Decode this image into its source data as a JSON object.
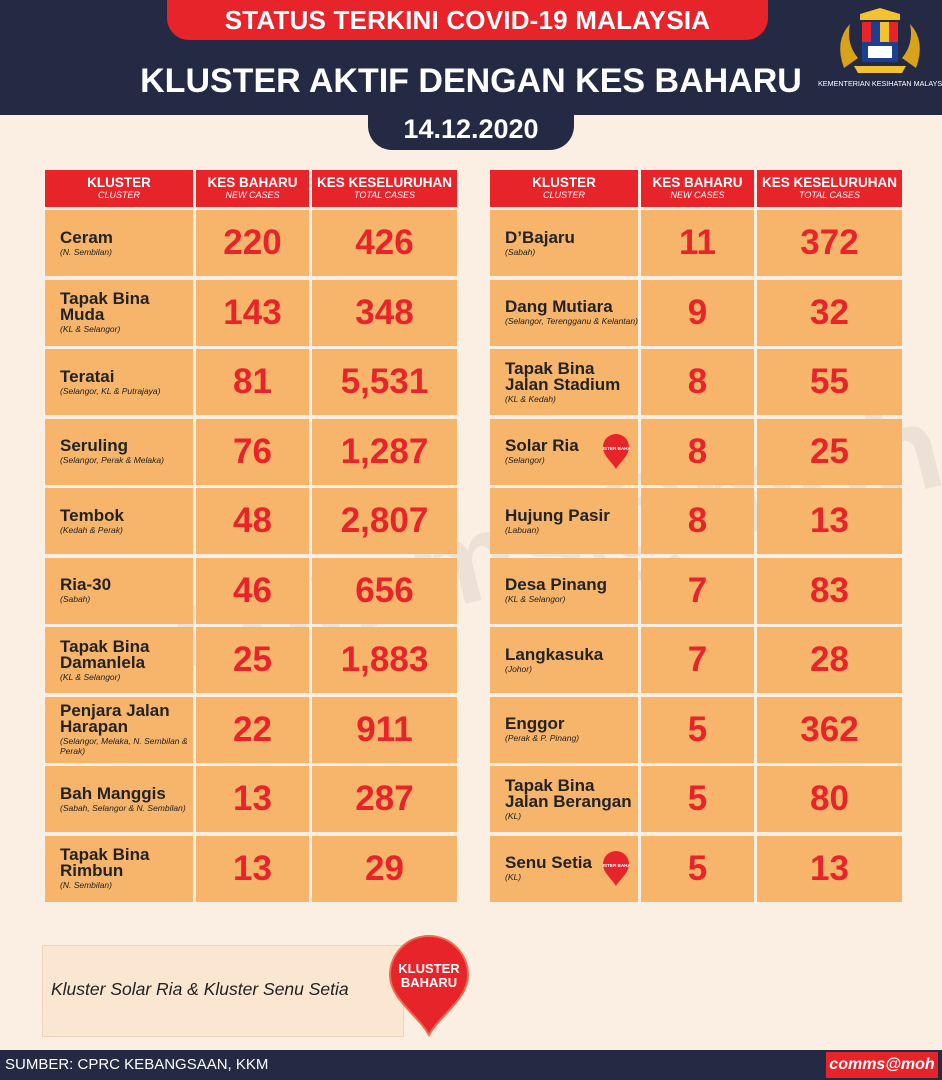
{
  "header": {
    "ribbon_title": "STATUS TERKINI COVID-19 MALAYSIA",
    "main_title": "KLUSTER AKTIF DENGAN KES BAHARU",
    "date": "14.12.2020",
    "logo_caption": "KEMENTERIAN KESIHATAN MALAYSIA"
  },
  "watermark": "comms@moh",
  "columns": {
    "cluster": "KLUSTER",
    "cluster_en": "CLUSTER",
    "new": "KES BAHARU",
    "new_en": "NEW CASES",
    "total": "KES KESELURUHAN",
    "total_en": "TOTAL CASES"
  },
  "left_rows": [
    {
      "name": "Ceram",
      "states": "(N. Sembilan)",
      "new": "220",
      "total": "426",
      "badge": false
    },
    {
      "name": "Tapak Bina Muda",
      "states": "(KL & Selangor)",
      "new": "143",
      "total": "348",
      "badge": false
    },
    {
      "name": "Teratai",
      "states": "(Selangor, KL & Putrajaya)",
      "new": "81",
      "total": "5,531",
      "badge": false
    },
    {
      "name": "Seruling",
      "states": "(Selangor, Perak & Melaka)",
      "new": "76",
      "total": "1,287",
      "badge": false
    },
    {
      "name": "Tembok",
      "states": "(Kedah & Perak)",
      "new": "48",
      "total": "2,807",
      "badge": false
    },
    {
      "name": "Ria-30",
      "states": "(Sabah)",
      "new": "46",
      "total": "656",
      "badge": false
    },
    {
      "name": "Tapak Bina Damanlela",
      "states": "(KL & Selangor)",
      "new": "25",
      "total": "1,883",
      "badge": false
    },
    {
      "name": "Penjara Jalan Harapan",
      "states": "(Selangor, Melaka, N. Sembilan & Perak)",
      "new": "22",
      "total": "911",
      "badge": false
    },
    {
      "name": "Bah Manggis",
      "states": "(Sabah, Selangor & N. Sembilan)",
      "new": "13",
      "total": "287",
      "badge": false
    },
    {
      "name": "Tapak Bina Rimbun",
      "states": "(N. Sembilan)",
      "new": "13",
      "total": "29",
      "badge": false
    }
  ],
  "right_rows": [
    {
      "name": "D’Bajaru",
      "states": "(Sabah)",
      "new": "11",
      "total": "372",
      "badge": false
    },
    {
      "name": "Dang Mutiara",
      "states": "(Selangor, Terengganu & Kelantan)",
      "new": "9",
      "total": "32",
      "badge": false
    },
    {
      "name": "Tapak  Bina Jalan Stadium",
      "states": "(KL & Kedah)",
      "new": "8",
      "total": "55",
      "badge": false
    },
    {
      "name": "Solar Ria",
      "states": "(Selangor)",
      "new": "8",
      "total": "25",
      "badge": true
    },
    {
      "name": "Hujung Pasir",
      "states": "(Labuan)",
      "new": "8",
      "total": "13",
      "badge": false
    },
    {
      "name": "Desa Pinang",
      "states": "(KL & Selangor)",
      "new": "7",
      "total": "83",
      "badge": false
    },
    {
      "name": "Langkasuka",
      "states": "(Johor)",
      "new": "7",
      "total": "28",
      "badge": false
    },
    {
      "name": "Enggor",
      "states": "(Perak & P. Pinang)",
      "new": "5",
      "total": "362",
      "badge": false
    },
    {
      "name": "Tapak Bina Jalan Berangan",
      "states": "(KL)",
      "new": "5",
      "total": "80",
      "badge": false
    },
    {
      "name": "Senu Setia",
      "states": "(KL)",
      "new": "5",
      "total": "13",
      "badge": true
    }
  ],
  "badge_small": "KLUSTER BAHARU",
  "legend": {
    "text": "Kluster Solar Ria & Kluster Senu Setia",
    "badge_line1": "KLUSTER",
    "badge_line2": "BAHARU"
  },
  "footer": {
    "source": "SUMBER: CPRC KEBANGSAAN, KKM",
    "brand": "comms@moh"
  },
  "colors": {
    "navy": "#242a43",
    "red": "#e8242b",
    "cell": "#f6b56a",
    "background": "#fbeee3"
  }
}
